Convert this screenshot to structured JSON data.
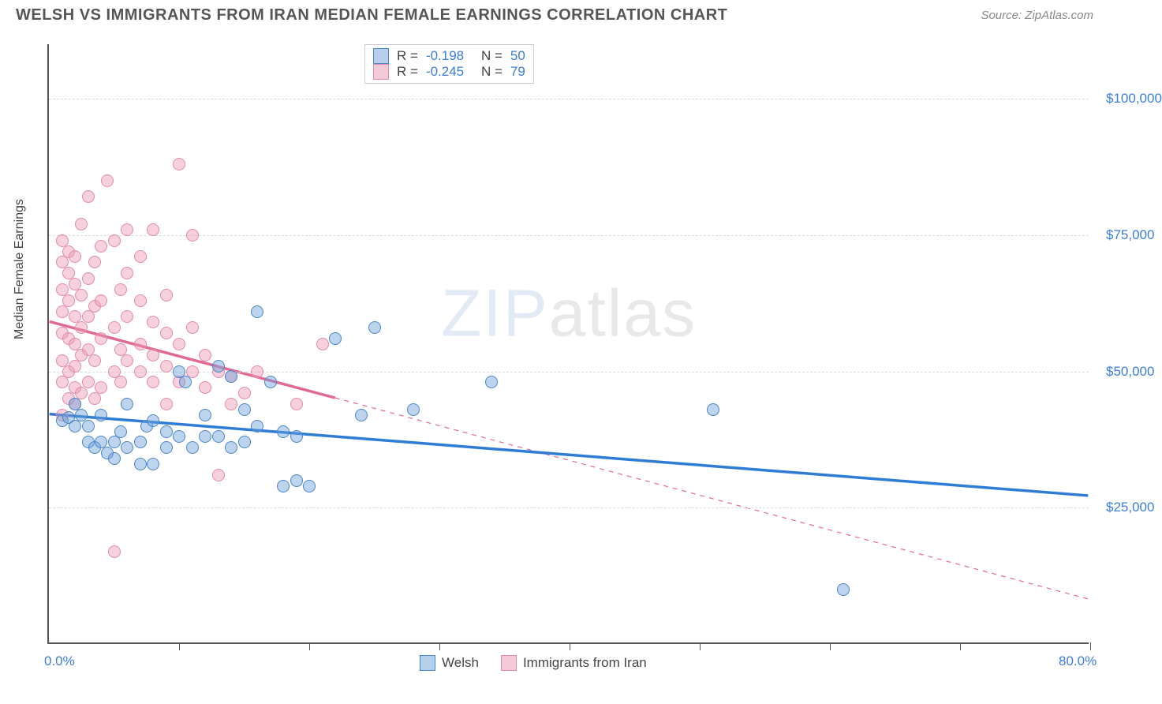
{
  "title": "WELSH VS IMMIGRANTS FROM IRAN MEDIAN FEMALE EARNINGS CORRELATION CHART",
  "source": "Source: ZipAtlas.com",
  "y_axis_label": "Median Female Earnings",
  "watermark_a": "ZIP",
  "watermark_b": "atlas",
  "chart": {
    "type": "scatter",
    "xlim": [
      0,
      80
    ],
    "ylim": [
      0,
      110000
    ],
    "x_ticks": [
      10,
      20,
      30,
      40,
      50,
      60,
      70,
      80
    ],
    "x_labels": [
      {
        "v": 0,
        "t": "0.0%"
      },
      {
        "v": 80,
        "t": "80.0%"
      }
    ],
    "y_grid": [
      25000,
      50000,
      75000,
      100000
    ],
    "y_labels": [
      {
        "v": 25000,
        "t": "$25,000"
      },
      {
        "v": 50000,
        "t": "$50,000"
      },
      {
        "v": 75000,
        "t": "$75,000"
      },
      {
        "v": 100000,
        "t": "$100,000"
      }
    ],
    "background": "#ffffff",
    "grid_color": "#dddddd",
    "axis_color": "#555555"
  },
  "series": {
    "blue": {
      "label": "Welsh",
      "color_fill": "rgba(108,160,220,0.45)",
      "color_stroke": "#4a86c8",
      "trend_color": "#2e7cd6",
      "R": "-0.198",
      "N": "50",
      "trend": {
        "x1": 0,
        "y1": 42000,
        "x2": 80,
        "y2": 27000,
        "solid_end_x": 80
      },
      "points": [
        [
          1,
          41000
        ],
        [
          1.5,
          41500
        ],
        [
          2,
          44000
        ],
        [
          2,
          40000
        ],
        [
          2.5,
          42000
        ],
        [
          3,
          37000
        ],
        [
          3,
          40000
        ],
        [
          3.5,
          36000
        ],
        [
          4,
          37000
        ],
        [
          4,
          42000
        ],
        [
          4.5,
          35000
        ],
        [
          5,
          37000
        ],
        [
          5,
          34000
        ],
        [
          5.5,
          39000
        ],
        [
          6,
          36000
        ],
        [
          6,
          44000
        ],
        [
          7,
          37000
        ],
        [
          7,
          33000
        ],
        [
          7.5,
          40000
        ],
        [
          8,
          33000
        ],
        [
          8,
          41000
        ],
        [
          9,
          39000
        ],
        [
          9,
          36000
        ],
        [
          10,
          38000
        ],
        [
          10,
          50000
        ],
        [
          10.5,
          48000
        ],
        [
          11,
          36000
        ],
        [
          12,
          38000
        ],
        [
          12,
          42000
        ],
        [
          13,
          51000
        ],
        [
          13,
          38000
        ],
        [
          14,
          36000
        ],
        [
          14,
          49000
        ],
        [
          15,
          37000
        ],
        [
          15,
          43000
        ],
        [
          16,
          40000
        ],
        [
          16,
          61000
        ],
        [
          17,
          48000
        ],
        [
          18,
          39000
        ],
        [
          18,
          29000
        ],
        [
          19,
          38000
        ],
        [
          19,
          30000
        ],
        [
          20,
          29000
        ],
        [
          22,
          56000
        ],
        [
          24,
          42000
        ],
        [
          25,
          58000
        ],
        [
          28,
          43000
        ],
        [
          34,
          48000
        ],
        [
          51,
          43000
        ],
        [
          61,
          10000
        ]
      ]
    },
    "pink": {
      "label": "Immigrants from Iran",
      "color_fill": "rgba(236,150,178,0.45)",
      "color_stroke": "#e389ac",
      "trend_color": "#e06a94",
      "R": "-0.245",
      "N": "79",
      "trend": {
        "x1": 0,
        "y1": 59000,
        "x2": 80,
        "y2": 8000,
        "solid_end_x": 22
      },
      "points": [
        [
          1,
          42000
        ],
        [
          1,
          48000
        ],
        [
          1,
          52000
        ],
        [
          1,
          57000
        ],
        [
          1,
          61000
        ],
        [
          1,
          65000
        ],
        [
          1,
          70000
        ],
        [
          1,
          74000
        ],
        [
          1.5,
          45000
        ],
        [
          1.5,
          50000
        ],
        [
          1.5,
          56000
        ],
        [
          1.5,
          63000
        ],
        [
          1.5,
          68000
        ],
        [
          1.5,
          72000
        ],
        [
          2,
          44000
        ],
        [
          2,
          47000
        ],
        [
          2,
          51000
        ],
        [
          2,
          55000
        ],
        [
          2,
          60000
        ],
        [
          2,
          66000
        ],
        [
          2,
          71000
        ],
        [
          2.5,
          46000
        ],
        [
          2.5,
          53000
        ],
        [
          2.5,
          58000
        ],
        [
          2.5,
          64000
        ],
        [
          2.5,
          77000
        ],
        [
          3,
          48000
        ],
        [
          3,
          54000
        ],
        [
          3,
          60000
        ],
        [
          3,
          67000
        ],
        [
          3,
          82000
        ],
        [
          3.5,
          45000
        ],
        [
          3.5,
          52000
        ],
        [
          3.5,
          62000
        ],
        [
          3.5,
          70000
        ],
        [
          4,
          47000
        ],
        [
          4,
          56000
        ],
        [
          4,
          63000
        ],
        [
          4,
          73000
        ],
        [
          4.5,
          85000
        ],
        [
          5,
          50000
        ],
        [
          5,
          58000
        ],
        [
          5,
          74000
        ],
        [
          5,
          17000
        ],
        [
          5.5,
          48000
        ],
        [
          5.5,
          54000
        ],
        [
          5.5,
          65000
        ],
        [
          6,
          52000
        ],
        [
          6,
          60000
        ],
        [
          6,
          68000
        ],
        [
          6,
          76000
        ],
        [
          7,
          50000
        ],
        [
          7,
          55000
        ],
        [
          7,
          63000
        ],
        [
          7,
          71000
        ],
        [
          8,
          48000
        ],
        [
          8,
          53000
        ],
        [
          8,
          59000
        ],
        [
          8,
          76000
        ],
        [
          9,
          44000
        ],
        [
          9,
          51000
        ],
        [
          9,
          57000
        ],
        [
          9,
          64000
        ],
        [
          10,
          48000
        ],
        [
          10,
          55000
        ],
        [
          10,
          88000
        ],
        [
          11,
          50000
        ],
        [
          11,
          58000
        ],
        [
          11,
          75000
        ],
        [
          12,
          47000
        ],
        [
          12,
          53000
        ],
        [
          13,
          50000
        ],
        [
          13,
          31000
        ],
        [
          14,
          49000
        ],
        [
          14,
          44000
        ],
        [
          15,
          46000
        ],
        [
          16,
          50000
        ],
        [
          19,
          44000
        ],
        [
          21,
          55000
        ]
      ]
    }
  },
  "corr_box": {
    "rows": [
      {
        "swatch": "blue",
        "R_label": "R =",
        "R": "-0.198",
        "N_label": "N =",
        "N": "50"
      },
      {
        "swatch": "pink",
        "R_label": "R =",
        "R": "-0.245",
        "N_label": "N =",
        "N": "79"
      }
    ]
  }
}
